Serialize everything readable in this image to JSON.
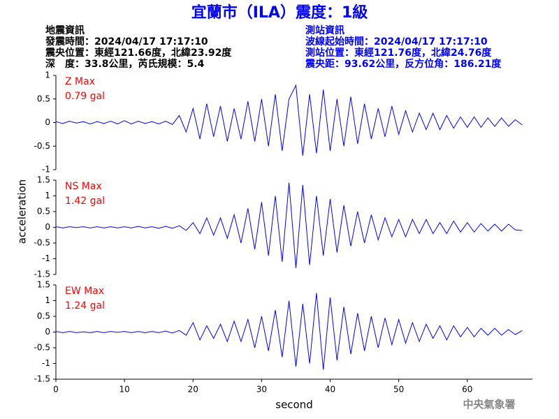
{
  "header": {
    "title": "宜蘭市（ILA）震度：1級",
    "left": [
      "地震資訊",
      "發震時間：2024/04/17 17:17:10",
      "震央位置：東經121.66度，北緯23.92度",
      "深　度：33.8公里，芮氏規模：5.4"
    ],
    "right": [
      "測站資訊",
      "波線起始時間：2024/04/17 17:17:10",
      "測站位置：東經121.76度，北緯24.76度",
      "震央距：93.62公里，反方位角：186.21度"
    ],
    "ylabel": "acceleration",
    "footer": "中央氣象署"
  },
  "chart_data": [
    {
      "type": "line",
      "label": "Z Max",
      "peak_label": "0.79 gal",
      "color": "#0000ff",
      "xlim": [
        0,
        69.5
      ],
      "ylim": [
        -1,
        1
      ],
      "yticks": [
        -1,
        -0.5,
        0,
        0.5,
        1
      ],
      "x": [
        0,
        1,
        2,
        3,
        4,
        5,
        6,
        7,
        8,
        9,
        10,
        11,
        12,
        13,
        14,
        15,
        16,
        17,
        18,
        19,
        20,
        21,
        22,
        23,
        24,
        25,
        26,
        27,
        28,
        29,
        30,
        31,
        32,
        33,
        34,
        35,
        36,
        37,
        38,
        39,
        40,
        41,
        42,
        43,
        44,
        45,
        46,
        47,
        48,
        49,
        50,
        51,
        52,
        53,
        54,
        55,
        56,
        57,
        58,
        59,
        60,
        61,
        62,
        63,
        64,
        65,
        66,
        67,
        68
      ],
      "values": [
        0.02,
        -0.02,
        0.03,
        -0.01,
        0.02,
        -0.03,
        0.02,
        -0.02,
        0.03,
        -0.03,
        0.04,
        -0.03,
        0.03,
        -0.02,
        0.02,
        -0.03,
        0.03,
        -0.04,
        0.15,
        -0.2,
        0.3,
        -0.35,
        0.4,
        -0.3,
        0.35,
        -0.4,
        0.3,
        -0.35,
        0.45,
        -0.4,
        0.5,
        -0.5,
        0.6,
        -0.6,
        0.5,
        0.79,
        -0.7,
        0.6,
        -0.65,
        0.7,
        -0.6,
        0.5,
        -0.5,
        0.55,
        -0.45,
        0.4,
        -0.35,
        0.3,
        -0.3,
        0.35,
        -0.25,
        0.25,
        -0.2,
        0.2,
        -0.15,
        0.2,
        -0.15,
        0.15,
        -0.12,
        0.12,
        -0.1,
        0.12,
        -0.1,
        0.1,
        -0.08,
        0.1,
        -0.08,
        0.06,
        -0.05
      ]
    },
    {
      "type": "line",
      "label": "NS Max",
      "peak_label": "1.42 gal",
      "color": "#0000ff",
      "xlim": [
        0,
        69.5
      ],
      "ylim": [
        -1.5,
        1.5
      ],
      "yticks": [
        -1.5,
        -1,
        -0.5,
        0,
        0.5,
        1,
        1.5
      ],
      "x": [
        0,
        1,
        2,
        3,
        4,
        5,
        6,
        7,
        8,
        9,
        10,
        11,
        12,
        13,
        14,
        15,
        16,
        17,
        18,
        19,
        20,
        21,
        22,
        23,
        24,
        25,
        26,
        27,
        28,
        29,
        30,
        31,
        32,
        33,
        34,
        35,
        36,
        37,
        38,
        39,
        40,
        41,
        42,
        43,
        44,
        45,
        46,
        47,
        48,
        49,
        50,
        51,
        52,
        53,
        54,
        55,
        56,
        57,
        58,
        59,
        60,
        61,
        62,
        63,
        64,
        65,
        66,
        67,
        68
      ],
      "values": [
        0.02,
        -0.02,
        0.02,
        -0.01,
        0.02,
        -0.02,
        0.02,
        -0.02,
        0.02,
        -0.02,
        0.02,
        -0.02,
        0.03,
        -0.02,
        0.02,
        -0.03,
        0.03,
        -0.03,
        0.05,
        -0.1,
        0.15,
        -0.2,
        0.3,
        -0.25,
        0.3,
        -0.35,
        0.4,
        -0.5,
        0.6,
        -0.7,
        0.8,
        -0.9,
        1.0,
        -1.1,
        1.42,
        -1.3,
        1.35,
        -1.2,
        1.0,
        -0.9,
        0.9,
        -0.8,
        0.7,
        -0.6,
        0.5,
        -0.5,
        0.4,
        -0.4,
        0.3,
        -0.3,
        0.25,
        -0.3,
        0.25,
        -0.2,
        0.25,
        -0.2,
        0.15,
        -0.2,
        0.2,
        -0.15,
        0.15,
        -0.15,
        0.12,
        -0.12,
        0.1,
        -0.12,
        0.1,
        -0.08,
        -0.1
      ]
    },
    {
      "type": "line",
      "label": "EW Max",
      "peak_label": "1.24 gal",
      "color": "#0000ff",
      "xlim": [
        0,
        69.5
      ],
      "ylim": [
        -1.5,
        1.5
      ],
      "yticks": [
        -1.5,
        -1,
        -0.5,
        0,
        0.5,
        1,
        1.5
      ],
      "xticks": [
        0,
        10,
        20,
        30,
        40,
        50,
        60
      ],
      "xlabel": "second",
      "x": [
        0,
        1,
        2,
        3,
        4,
        5,
        6,
        7,
        8,
        9,
        10,
        11,
        12,
        13,
        14,
        15,
        16,
        17,
        18,
        19,
        20,
        21,
        22,
        23,
        24,
        25,
        26,
        27,
        28,
        29,
        30,
        31,
        32,
        33,
        34,
        35,
        36,
        37,
        38,
        39,
        40,
        41,
        42,
        43,
        44,
        45,
        46,
        47,
        48,
        49,
        50,
        51,
        52,
        53,
        54,
        55,
        56,
        57,
        58,
        59,
        60,
        61,
        62,
        63,
        64,
        65,
        66,
        67,
        68
      ],
      "values": [
        0.02,
        -0.02,
        0.02,
        -0.02,
        0.01,
        -0.02,
        0.02,
        -0.02,
        0.02,
        -0.01,
        0.02,
        -0.02,
        0.02,
        -0.02,
        0.02,
        -0.02,
        0.03,
        -0.03,
        0.05,
        -0.1,
        0.3,
        -0.25,
        0.2,
        -0.2,
        0.25,
        -0.3,
        0.35,
        -0.3,
        0.4,
        -0.5,
        0.5,
        -0.6,
        0.7,
        -0.8,
        1.0,
        -1.1,
        0.9,
        -1.0,
        1.24,
        -1.2,
        1.1,
        -0.9,
        0.8,
        -0.7,
        0.6,
        -0.6,
        0.5,
        -0.5,
        0.45,
        -0.4,
        0.4,
        -0.35,
        0.3,
        -0.3,
        0.25,
        -0.2,
        0.2,
        -0.25,
        0.2,
        -0.15,
        0.15,
        -0.15,
        0.12,
        -0.1,
        0.12,
        -0.1,
        0.08,
        -0.08,
        0.05
      ]
    }
  ]
}
